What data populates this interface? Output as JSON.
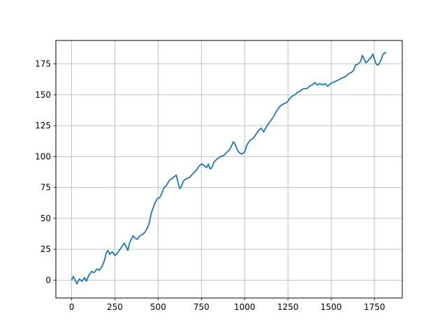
{
  "chart_data": {
    "type": "line",
    "title": "",
    "xlabel": "",
    "ylabel": "",
    "xlim": [
      -91,
      1911
    ],
    "ylim": [
      -14.5,
      194
    ],
    "grid": true,
    "x_ticks": [
      0,
      250,
      500,
      750,
      1000,
      1250,
      1500,
      1750
    ],
    "x_tick_labels": [
      "0",
      "250",
      "500",
      "750",
      "1000",
      "1250",
      "1500",
      "1750"
    ],
    "y_ticks": [
      0,
      25,
      50,
      75,
      100,
      125,
      150,
      175
    ],
    "y_tick_labels": [
      "0",
      "25",
      "50",
      "75",
      "100",
      "125",
      "150",
      "175"
    ],
    "series": [
      {
        "color": "#1f77b4",
        "points": [
          [
            0,
            0
          ],
          [
            10,
            3
          ],
          [
            20,
            0
          ],
          [
            30,
            -3
          ],
          [
            45,
            1
          ],
          [
            60,
            -1
          ],
          [
            75,
            2
          ],
          [
            85,
            -1
          ],
          [
            100,
            4
          ],
          [
            115,
            7
          ],
          [
            130,
            6
          ],
          [
            145,
            9
          ],
          [
            160,
            8
          ],
          [
            175,
            11
          ],
          [
            190,
            16
          ],
          [
            200,
            22
          ],
          [
            210,
            24
          ],
          [
            220,
            21
          ],
          [
            235,
            23
          ],
          [
            250,
            20
          ],
          [
            265,
            22
          ],
          [
            280,
            25
          ],
          [
            295,
            28
          ],
          [
            305,
            30
          ],
          [
            315,
            27
          ],
          [
            325,
            24
          ],
          [
            335,
            30
          ],
          [
            345,
            33
          ],
          [
            355,
            36
          ],
          [
            365,
            34
          ],
          [
            380,
            33
          ],
          [
            395,
            36
          ],
          [
            410,
            37
          ],
          [
            425,
            39
          ],
          [
            440,
            43
          ],
          [
            450,
            47
          ],
          [
            460,
            54
          ],
          [
            470,
            58
          ],
          [
            480,
            62
          ],
          [
            495,
            66
          ],
          [
            510,
            67
          ],
          [
            520,
            70
          ],
          [
            535,
            75
          ],
          [
            550,
            77
          ],
          [
            565,
            81
          ],
          [
            580,
            82
          ],
          [
            595,
            84
          ],
          [
            605,
            85
          ],
          [
            615,
            79
          ],
          [
            625,
            74
          ],
          [
            635,
            76
          ],
          [
            645,
            80
          ],
          [
            660,
            82
          ],
          [
            680,
            83
          ],
          [
            700,
            86
          ],
          [
            720,
            89
          ],
          [
            735,
            92
          ],
          [
            750,
            94
          ],
          [
            765,
            93
          ],
          [
            780,
            91
          ],
          [
            790,
            94
          ],
          [
            800,
            90
          ],
          [
            810,
            91
          ],
          [
            825,
            96
          ],
          [
            840,
            98
          ],
          [
            860,
            100
          ],
          [
            880,
            101
          ],
          [
            900,
            104
          ],
          [
            915,
            106
          ],
          [
            925,
            109
          ],
          [
            935,
            112
          ],
          [
            945,
            110
          ],
          [
            955,
            106
          ],
          [
            970,
            103
          ],
          [
            985,
            102
          ],
          [
            1000,
            104
          ],
          [
            1015,
            110
          ],
          [
            1030,
            113
          ],
          [
            1050,
            115
          ],
          [
            1065,
            118
          ],
          [
            1080,
            121
          ],
          [
            1095,
            123
          ],
          [
            1110,
            120
          ],
          [
            1125,
            124
          ],
          [
            1140,
            127
          ],
          [
            1155,
            130
          ],
          [
            1170,
            133
          ],
          [
            1185,
            137
          ],
          [
            1200,
            140
          ],
          [
            1215,
            142
          ],
          [
            1230,
            143
          ],
          [
            1245,
            144
          ],
          [
            1260,
            147
          ],
          [
            1275,
            149
          ],
          [
            1290,
            150
          ],
          [
            1305,
            152
          ],
          [
            1320,
            153
          ],
          [
            1340,
            155
          ],
          [
            1360,
            155
          ],
          [
            1375,
            157
          ],
          [
            1390,
            158
          ],
          [
            1405,
            160
          ],
          [
            1420,
            158
          ],
          [
            1435,
            159
          ],
          [
            1450,
            158
          ],
          [
            1465,
            159
          ],
          [
            1480,
            157
          ],
          [
            1495,
            159
          ],
          [
            1510,
            160
          ],
          [
            1525,
            161
          ],
          [
            1540,
            162
          ],
          [
            1555,
            163
          ],
          [
            1570,
            164
          ],
          [
            1585,
            165
          ],
          [
            1600,
            167
          ],
          [
            1615,
            168
          ],
          [
            1630,
            170
          ],
          [
            1640,
            174
          ],
          [
            1655,
            175
          ],
          [
            1670,
            177
          ],
          [
            1680,
            182
          ],
          [
            1690,
            179
          ],
          [
            1700,
            176
          ],
          [
            1710,
            177
          ],
          [
            1720,
            179
          ],
          [
            1730,
            180
          ],
          [
            1740,
            183
          ],
          [
            1750,
            179
          ],
          [
            1760,
            175
          ],
          [
            1770,
            174
          ],
          [
            1780,
            176
          ],
          [
            1790,
            179
          ],
          [
            1800,
            183
          ],
          [
            1810,
            184
          ],
          [
            1818,
            184
          ]
        ]
      }
    ]
  }
}
